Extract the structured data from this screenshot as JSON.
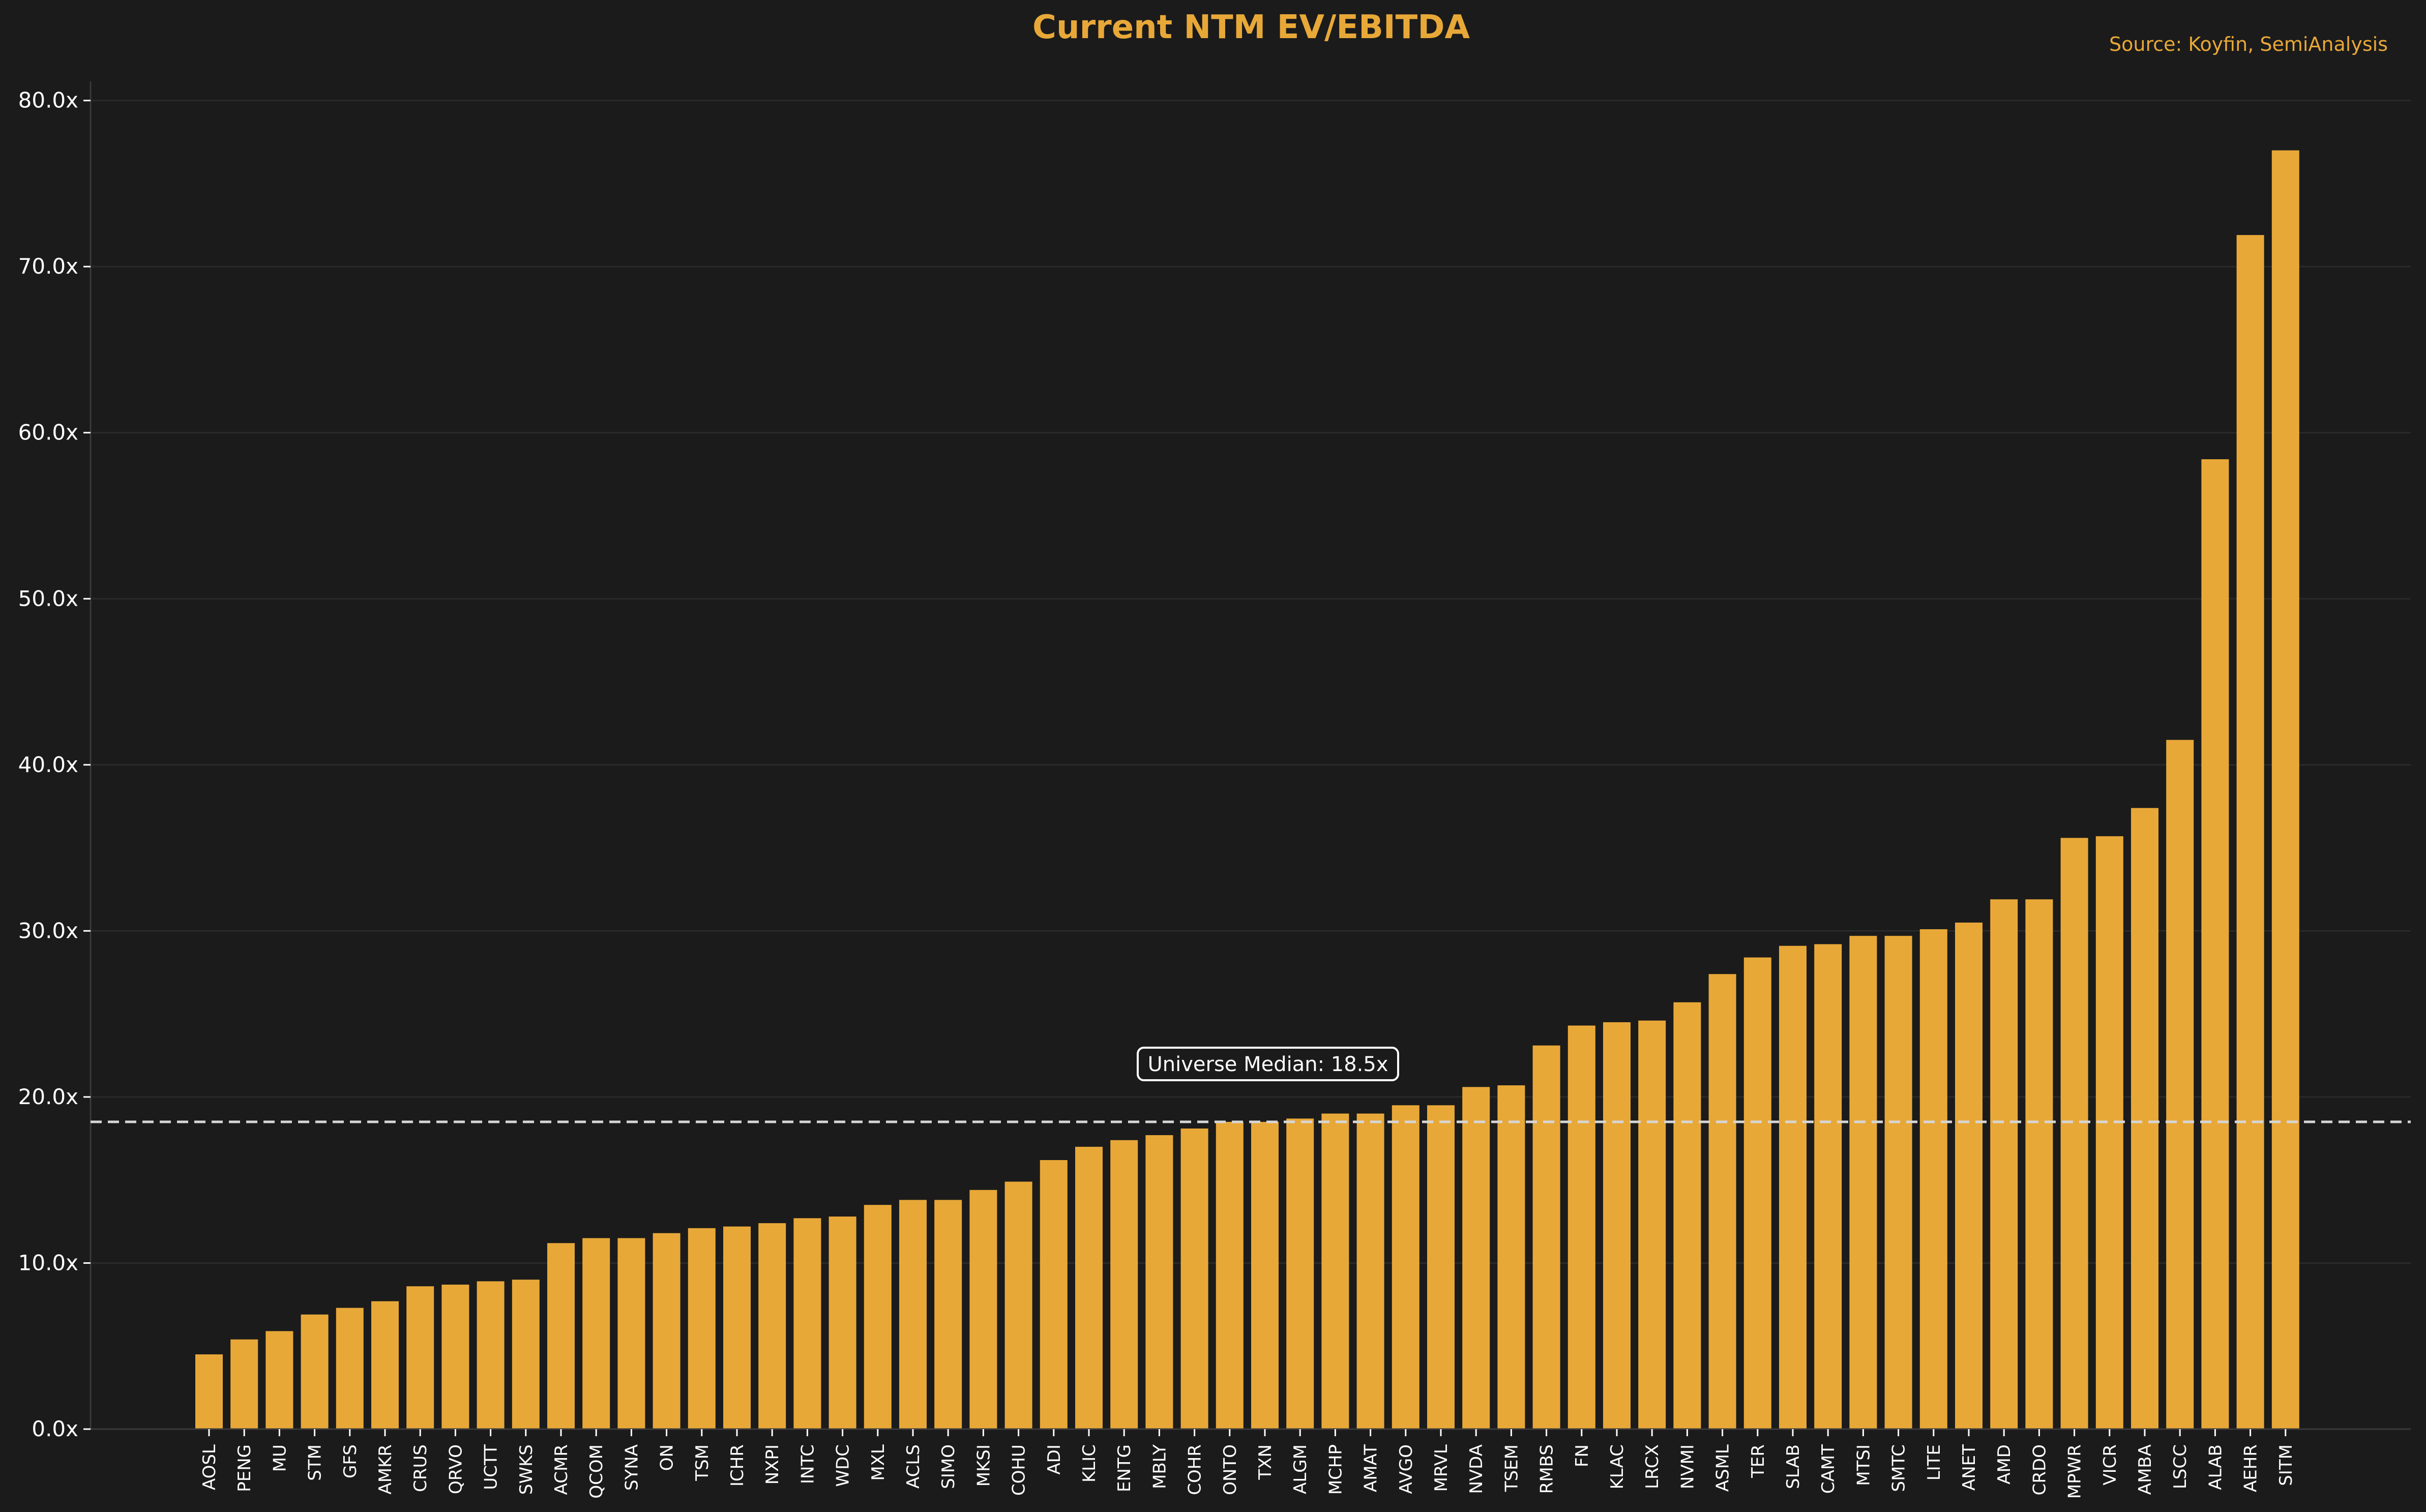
{
  "chart_data": {
    "type": "bar",
    "title": "Current NTM EV/EBITDA",
    "source": "Source: Koyfin, SemiAnalysis",
    "xlabel": "",
    "ylabel": "",
    "ylim": [
      0,
      81
    ],
    "yticks": [
      0,
      10,
      20,
      30,
      40,
      50,
      60,
      70,
      80
    ],
    "ytick_labels": [
      "0.0x",
      "10.0x",
      "20.0x",
      "30.0x",
      "40.0x",
      "50.0x",
      "60.0x",
      "70.0x",
      "80.0x"
    ],
    "grid": "horizontal",
    "bar_color": "#e8a838",
    "background_color": "#1b1b1b",
    "median": {
      "value": 18.5,
      "label": "Universe Median: 18.5x"
    },
    "categories": [
      "AOSL",
      "PENG",
      "MU",
      "STM",
      "GFS",
      "AMKR",
      "CRUS",
      "QRVO",
      "UCTT",
      "SWKS",
      "ACMR",
      "QCOM",
      "SYNA",
      "ON",
      "TSM",
      "ICHR",
      "NXPI",
      "INTC",
      "WDC",
      "MXL",
      "ACLS",
      "SIMO",
      "MKSI",
      "COHU",
      "ADI",
      "KLIC",
      "ENTG",
      "MBLY",
      "COHR",
      "ONTO",
      "TXN",
      "ALGM",
      "MCHP",
      "AMAT",
      "AVGO",
      "MRVL",
      "NVDA",
      "TSEM",
      "RMBS",
      "FN",
      "KLAC",
      "LRCX",
      "NVMI",
      "ASML",
      "TER",
      "SLAB",
      "CAMT",
      "MTSI",
      "SMTC",
      "LITE",
      "ANET",
      "AMD",
      "CRDO",
      "MPWR",
      "VICR",
      "AMBA",
      "LSCC",
      "ALAB",
      "AEHR",
      "SITM"
    ],
    "values": [
      4.5,
      5.4,
      5.9,
      6.9,
      7.3,
      7.7,
      8.6,
      8.7,
      8.9,
      9.0,
      11.2,
      11.5,
      11.5,
      11.8,
      12.1,
      12.2,
      12.4,
      12.7,
      12.8,
      13.5,
      13.8,
      13.8,
      14.4,
      14.9,
      16.2,
      17.0,
      17.4,
      17.7,
      18.1,
      18.5,
      18.5,
      18.7,
      19.0,
      19.0,
      19.5,
      19.5,
      20.6,
      20.7,
      23.1,
      24.3,
      24.5,
      24.6,
      25.7,
      27.4,
      28.4,
      29.1,
      29.2,
      29.7,
      29.7,
      30.1,
      30.5,
      31.9,
      31.9,
      35.6,
      35.7,
      37.4,
      41.5,
      58.4,
      71.9,
      77.0
    ]
  }
}
